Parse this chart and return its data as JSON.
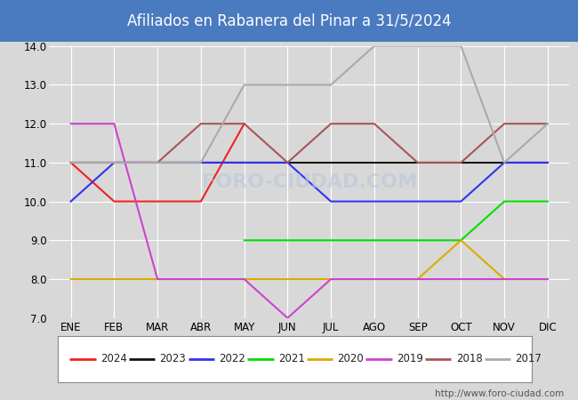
{
  "title": "Afiliados en Rabanera del Pinar a 31/5/2024",
  "title_bg": "#4a7abf",
  "ylim": [
    7.0,
    14.0
  ],
  "yticks": [
    7.0,
    8.0,
    9.0,
    10.0,
    11.0,
    12.0,
    13.0,
    14.0
  ],
  "months": [
    "ENE",
    "FEB",
    "MAR",
    "ABR",
    "MAY",
    "JUN",
    "JUL",
    "AGO",
    "SEP",
    "OCT",
    "NOV",
    "DIC"
  ],
  "watermark": "http://www.foro-ciudad.com",
  "series": [
    {
      "year": "2024",
      "color": "#ee2222",
      "data": [
        11,
        10,
        10,
        10,
        12,
        null,
        null,
        null,
        null,
        null,
        null,
        null
      ]
    },
    {
      "year": "2023",
      "color": "#111111",
      "data": [
        11,
        11,
        11,
        11,
        11,
        11,
        11,
        11,
        11,
        11,
        11,
        11
      ]
    },
    {
      "year": "2022",
      "color": "#3333ee",
      "data": [
        10,
        11,
        11,
        11,
        11,
        11,
        10,
        10,
        10,
        10,
        11,
        11
      ]
    },
    {
      "year": "2021",
      "color": "#00dd00",
      "data": [
        null,
        null,
        null,
        null,
        9,
        9,
        9,
        9,
        9,
        9,
        10,
        10
      ]
    },
    {
      "year": "2020",
      "color": "#ddaa00",
      "data": [
        8,
        8,
        8,
        8,
        8,
        8,
        8,
        8,
        8,
        9,
        8,
        8
      ]
    },
    {
      "year": "2019",
      "color": "#cc44cc",
      "data": [
        12,
        12,
        8,
        8,
        8,
        7,
        8,
        8,
        8,
        8,
        8,
        8
      ]
    },
    {
      "year": "2018",
      "color": "#aa5555",
      "data": [
        11,
        11,
        11,
        12,
        12,
        11,
        12,
        12,
        11,
        11,
        12,
        12
      ]
    },
    {
      "year": "2017",
      "color": "#aaaaaa",
      "data": [
        11,
        11,
        11,
        11,
        13,
        13,
        13,
        14,
        14,
        14,
        11,
        12
      ]
    }
  ],
  "legend_order": [
    "2024",
    "2023",
    "2022",
    "2021",
    "2020",
    "2019",
    "2018",
    "2017"
  ],
  "bg_color": "#d8d8d8",
  "plot_bg": "#d8d8d8",
  "grid_color": "#ffffff",
  "line_width": 1.5
}
